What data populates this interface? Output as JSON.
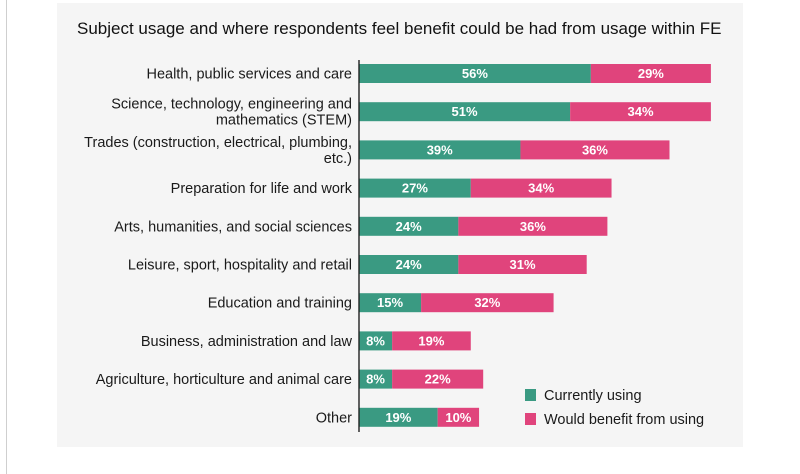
{
  "chart_data": {
    "type": "bar",
    "orientation": "horizontal-stacked",
    "title": "Subject usage and where respondents feel benefit could be had from usage within FE",
    "categories": [
      [
        "Health, public services and care"
      ],
      [
        "Science, technology, engineering and",
        "mathematics (STEM)"
      ],
      [
        "Trades (construction, electrical, plumbing,",
        "etc.)"
      ],
      [
        "Preparation for life and work"
      ],
      [
        "Arts, humanities, and social sciences"
      ],
      [
        "Leisure, sport, hospitality and retail"
      ],
      [
        "Education and training"
      ],
      [
        "Business, administration and law"
      ],
      [
        "Agriculture, horticulture and animal care"
      ],
      [
        "Other"
      ]
    ],
    "series": [
      {
        "name": "Currently using",
        "color": "#3a9a82",
        "values": [
          56,
          51,
          39,
          27,
          24,
          24,
          15,
          8,
          8,
          19
        ]
      },
      {
        "name": "Would benefit from using",
        "color": "#e0447c",
        "values": [
          29,
          34,
          36,
          34,
          36,
          31,
          32,
          19,
          22,
          10
        ]
      }
    ],
    "value_suffix": "%",
    "xlim": [
      0,
      85
    ],
    "xlabel": "",
    "ylabel": "",
    "legend_position": "bottom-right",
    "grid": false
  }
}
